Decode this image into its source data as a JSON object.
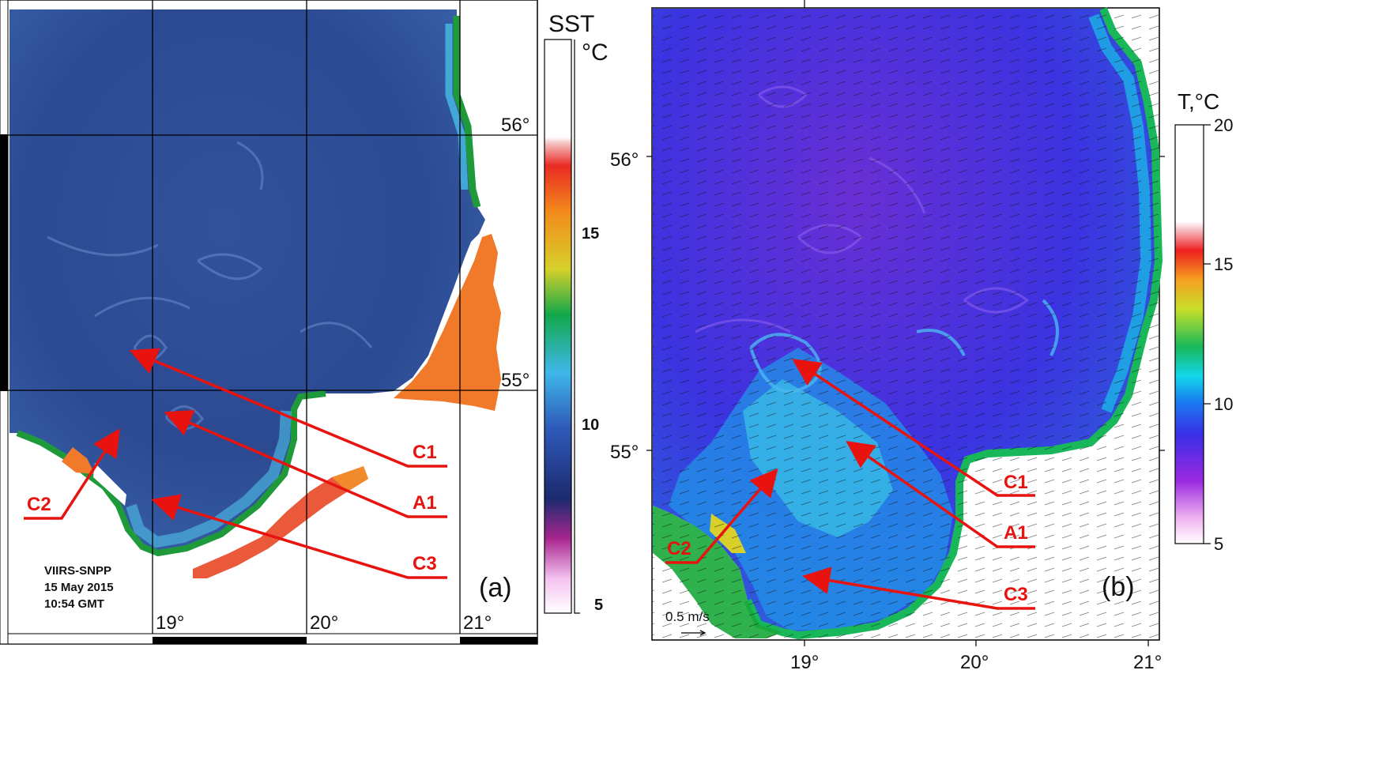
{
  "panel_a": {
    "tag": "(a)",
    "caption": {
      "line1": "VIIRS-SNPP",
      "line2": "15 May 2015",
      "line3": "10:54 GMT"
    },
    "lat_labels": [
      "56°",
      "55°"
    ],
    "lon_labels": [
      "19°",
      "20°",
      "21°"
    ],
    "colorbar": {
      "title": "SST",
      "unit": "°C",
      "ticks": [
        "15",
        "10",
        "5"
      ]
    },
    "features": [
      "C1",
      "A1",
      "C2",
      "C3"
    ]
  },
  "panel_b": {
    "tag": "(b)",
    "lat_labels": [
      "56°",
      "55°"
    ],
    "lon_labels": [
      "19°",
      "20°",
      "21°"
    ],
    "colorbar": {
      "title": "T,°C",
      "ticks": [
        "20",
        "15",
        "10",
        "5"
      ]
    },
    "scale_label": "0.5 m/s",
    "features": [
      "C1",
      "A1",
      "C2",
      "C3"
    ]
  },
  "colors": {
    "arrow": "#e8130e",
    "sea_a": "#2c4a94",
    "sea_b": "#3a2fd6",
    "land_orange": "#f07a2a",
    "coast_green": "#1f9a3a"
  }
}
